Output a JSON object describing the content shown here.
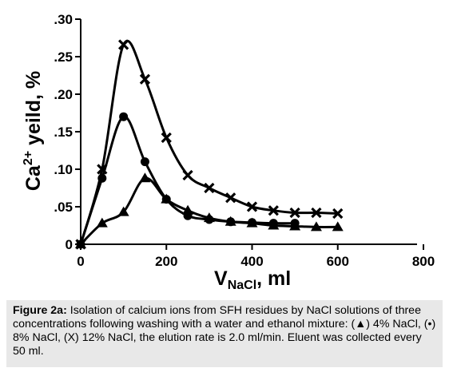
{
  "chart_data": {
    "type": "line",
    "ylabel_main": "Ca",
    "ylabel_sup": "2+",
    "ylabel_rest": " yeild, %",
    "xlabel_main": "V",
    "xlabel_sub": "NaCl",
    "xlabel_rest": ", ml",
    "xlim": [
      0,
      800
    ],
    "ylim": [
      0,
      0.3
    ],
    "x_ticks": [
      0,
      200,
      400,
      600,
      800
    ],
    "x_tick_labels": [
      "0",
      "200",
      "400",
      "600",
      "800"
    ],
    "y_ticks": [
      0,
      0.05,
      0.1,
      0.15,
      0.2,
      0.25,
      0.3
    ],
    "y_tick_labels": [
      "0",
      ".05",
      ".10",
      ".15",
      ".20",
      ".25",
      ".30"
    ],
    "grid": false,
    "series": [
      {
        "marker": "triangle",
        "x": [
          0,
          50,
          100,
          150,
          200,
          250,
          300,
          350,
          400,
          450,
          500,
          550,
          600
        ],
        "y": [
          0,
          0.028,
          0.043,
          0.088,
          0.06,
          0.045,
          0.035,
          0.03,
          0.028,
          0.025,
          0.024,
          0.023,
          0.023
        ]
      },
      {
        "marker": "circle",
        "x": [
          0,
          50,
          100,
          150,
          200,
          250,
          300,
          350,
          400,
          450,
          500
        ],
        "y": [
          0,
          0.088,
          0.17,
          0.11,
          0.06,
          0.038,
          0.033,
          0.03,
          0.029,
          0.028,
          0.028
        ]
      },
      {
        "marker": "x",
        "x": [
          0,
          50,
          100,
          150,
          200,
          250,
          300,
          350,
          400,
          450,
          500,
          550,
          600
        ],
        "y": [
          0,
          0.1,
          0.266,
          0.22,
          0.142,
          0.092,
          0.075,
          0.062,
          0.05,
          0.045,
          0.042,
          0.042,
          0.041
        ]
      }
    ]
  },
  "caption": {
    "bold": "Figure 2a:",
    "text": " Isolation of calcium ions from SFH residues by NaCl solutions of three concentrations following washing with a water and ethanol mixture: (▲) 4% NaCl, (•) 8% NaCl, (X) 12% NaCl, the elution rate is 2.0 ml/min. Eluent was collected every 50 ml."
  }
}
